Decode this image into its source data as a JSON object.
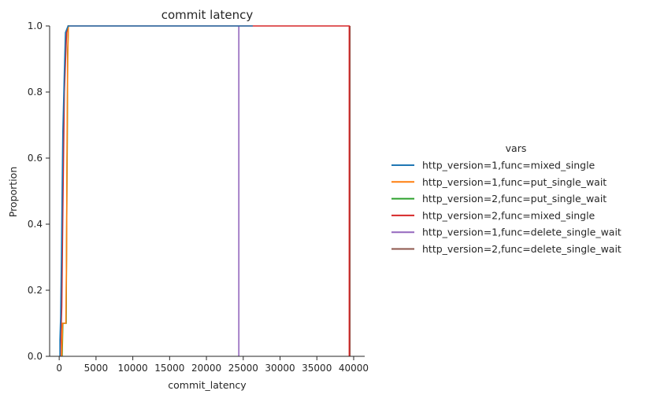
{
  "chart_data": {
    "type": "line",
    "subtype": "ecdf",
    "title": "commit latency",
    "xlabel": "commit_latency",
    "ylabel": "Proportion",
    "xlim": [
      -1300,
      41500
    ],
    "ylim": [
      0,
      1.0
    ],
    "xticks": [
      0,
      5000,
      10000,
      15000,
      20000,
      25000,
      30000,
      35000,
      40000
    ],
    "yticks": [
      0.0,
      0.2,
      0.4,
      0.6,
      0.8,
      1.0
    ],
    "xtick_labels": [
      "0",
      "5000",
      "10000",
      "15000",
      "20000",
      "25000",
      "30000",
      "35000",
      "40000"
    ],
    "ytick_labels": [
      "0.0",
      "0.2",
      "0.4",
      "0.6",
      "0.8",
      "1.0"
    ],
    "grid": false,
    "legend": {
      "title": "vars",
      "placement": "right, outside plot"
    },
    "series": [
      {
        "name": "http_version=1,func=mixed_single",
        "color": "#1f77b4",
        "points": [
          [
            100,
            0
          ],
          [
            100,
            0.05
          ],
          [
            200,
            0.12
          ],
          [
            300,
            0.3
          ],
          [
            400,
            0.5
          ],
          [
            500,
            0.68
          ],
          [
            700,
            0.86
          ],
          [
            850,
            0.98
          ],
          [
            1200,
            1.0
          ],
          [
            26300,
            1.0
          ]
        ]
      },
      {
        "name": "http_version=1,func=put_single_wait",
        "color": "#ff7f0e",
        "points": [
          [
            350,
            0
          ],
          [
            450,
            0.1
          ],
          [
            900,
            0.1
          ],
          [
            1000,
            0.3
          ],
          [
            1050,
            0.6
          ],
          [
            1150,
            0.9
          ],
          [
            1250,
            1.0
          ],
          [
            1400,
            1.0
          ]
        ]
      },
      {
        "name": "http_version=2,func=put_single_wait",
        "color": "#2ca02c",
        "points": [
          [
            400,
            0
          ],
          [
            500,
            0.1
          ],
          [
            950,
            0.1
          ],
          [
            1000,
            0.35
          ],
          [
            1100,
            0.65
          ],
          [
            1150,
            0.92
          ],
          [
            1250,
            1.0
          ],
          [
            1400,
            1.0
          ]
        ]
      },
      {
        "name": "http_version=2,func=mixed_single",
        "color": "#d62728",
        "points": [
          [
            150,
            0
          ],
          [
            350,
            0.15
          ],
          [
            500,
            0.45
          ],
          [
            700,
            0.8
          ],
          [
            1000,
            0.98
          ],
          [
            1200,
            1.0
          ],
          [
            39400,
            1.0
          ],
          [
            39400,
            0
          ]
        ]
      },
      {
        "name": "http_version=1,func=delete_single_wait",
        "color": "#9467bd",
        "points": [
          [
            24400,
            0
          ],
          [
            24400,
            1.0
          ]
        ]
      },
      {
        "name": "http_version=2,func=delete_single_wait",
        "color": "#8c564b",
        "points": [
          [
            39500,
            0
          ],
          [
            39500,
            1.0
          ]
        ]
      }
    ]
  }
}
